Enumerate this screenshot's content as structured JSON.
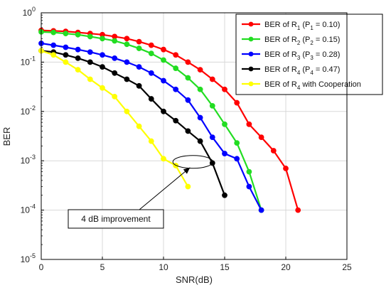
{
  "chart_data": {
    "type": "line",
    "xlabel": "SNR(dB)",
    "ylabel": "BER",
    "xlim": [
      0,
      25
    ],
    "ylim": [
      1e-05,
      1
    ],
    "yscale": "log",
    "grid": true,
    "legend_position": "top-right",
    "x_ticks": [
      "0",
      "5",
      "10",
      "15",
      "20",
      "25"
    ],
    "y_ticks": [
      {
        "base": "10",
        "exp": "0"
      },
      {
        "base": "10",
        "exp": "-1"
      },
      {
        "base": "10",
        "exp": "-2"
      },
      {
        "base": "10",
        "exp": "-3"
      },
      {
        "base": "10",
        "exp": "-4"
      },
      {
        "base": "10",
        "exp": "-5"
      }
    ],
    "series": [
      {
        "legend": {
          "prefix": "BER of R",
          "sub": "1",
          "mid": " (P",
          "psub": "1",
          "suffix": " = 0.10)"
        },
        "color": "#ff0000",
        "x": [
          0,
          1,
          2,
          3,
          4,
          5,
          6,
          7,
          8,
          9,
          10,
          11,
          12,
          13,
          14,
          15,
          16,
          17,
          18,
          19,
          20,
          21
        ],
        "y": [
          0.44,
          0.43,
          0.42,
          0.4,
          0.38,
          0.36,
          0.33,
          0.3,
          0.26,
          0.22,
          0.18,
          0.14,
          0.1,
          0.07,
          0.045,
          0.028,
          0.015,
          0.0055,
          0.003,
          0.0016,
          0.0007,
          0.0001
        ]
      },
      {
        "legend": {
          "prefix": "BER of R",
          "sub": "2",
          "mid": " (P",
          "psub": "2",
          "suffix": " = 0.15)"
        },
        "color": "#22dd22",
        "x": [
          0,
          1,
          2,
          3,
          4,
          5,
          6,
          7,
          8,
          9,
          10,
          11,
          12,
          13,
          14,
          15,
          16,
          17,
          18
        ],
        "y": [
          0.41,
          0.4,
          0.38,
          0.36,
          0.33,
          0.3,
          0.27,
          0.23,
          0.19,
          0.15,
          0.11,
          0.075,
          0.048,
          0.028,
          0.013,
          0.0055,
          0.0023,
          0.0006,
          0.0001
        ]
      },
      {
        "legend": {
          "prefix": "BER of R",
          "sub": "3",
          "mid": " (P",
          "psub": "3",
          "suffix": " = 0.28)"
        },
        "color": "#0000ff",
        "x": [
          0,
          1,
          2,
          3,
          4,
          5,
          6,
          7,
          8,
          9,
          10,
          11,
          12,
          13,
          14,
          15,
          16,
          17,
          18
        ],
        "y": [
          0.24,
          0.22,
          0.2,
          0.18,
          0.16,
          0.14,
          0.12,
          0.1,
          0.08,
          0.06,
          0.042,
          0.028,
          0.017,
          0.0075,
          0.003,
          0.0014,
          0.0011,
          0.0003,
          0.0001
        ]
      },
      {
        "legend": {
          "prefix": "BER of R",
          "sub": "4",
          "mid": " (P",
          "psub": "4",
          "suffix": " = 0.47)"
        },
        "color": "#000000",
        "x": [
          0,
          1,
          2,
          3,
          4,
          5,
          6,
          7,
          8,
          9,
          10,
          11,
          12,
          13,
          14,
          15
        ],
        "y": [
          0.17,
          0.16,
          0.14,
          0.12,
          0.1,
          0.08,
          0.06,
          0.045,
          0.033,
          0.018,
          0.01,
          0.0065,
          0.004,
          0.0025,
          0.0009,
          0.0002
        ]
      },
      {
        "legend": {
          "prefix": "BER of R",
          "sub": "4",
          "mid": " with Cooperation",
          "psub": "",
          "suffix": ""
        },
        "color": "#ffff00",
        "x": [
          0,
          1,
          2,
          3,
          4,
          5,
          6,
          7,
          8,
          9,
          10,
          11,
          12
        ],
        "y": [
          0.17,
          0.14,
          0.1,
          0.07,
          0.045,
          0.03,
          0.02,
          0.01,
          0.005,
          0.0025,
          0.0011,
          0.0008,
          0.0003
        ]
      }
    ],
    "annotation": {
      "text": "4 dB improvement"
    }
  }
}
